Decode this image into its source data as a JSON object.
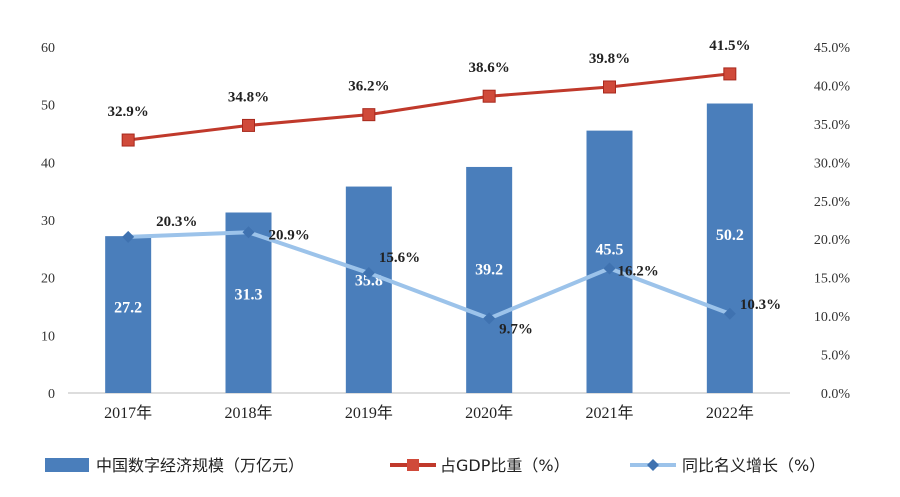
{
  "chart_data": {
    "type": "bar+line",
    "categories": [
      "2017年",
      "2018年",
      "2019年",
      "2020年",
      "2021年",
      "2022年"
    ],
    "series": [
      {
        "name": "中国数字经济规模（万亿元）",
        "type": "bar",
        "axis": "left",
        "values": [
          27.2,
          31.3,
          35.8,
          39.2,
          45.5,
          50.2
        ],
        "labels": [
          "27.2",
          "31.3",
          "35.8",
          "39.2",
          "45.5",
          "50.2"
        ],
        "color": "#4a7ebb"
      },
      {
        "name": "占GDP比重（%）",
        "type": "line",
        "axis": "right",
        "marker": "square",
        "values": [
          32.9,
          34.8,
          36.2,
          38.6,
          39.8,
          41.5
        ],
        "labels": [
          "32.9%",
          "34.8%",
          "36.2%",
          "38.6%",
          "39.8%",
          "41.5%"
        ],
        "color": "#c0392b"
      },
      {
        "name": "同比名义增长（%）",
        "type": "line",
        "axis": "right",
        "marker": "diamond",
        "values": [
          20.3,
          20.9,
          15.6,
          9.7,
          16.2,
          10.3
        ],
        "labels": [
          "20.3%",
          "20.9%",
          "15.6%",
          "9.7%",
          "16.2%",
          "10.3%"
        ],
        "color": "#7aaee0"
      }
    ],
    "ylim_left": [
      0,
      60
    ],
    "yticks_left": [
      "0",
      "10",
      "20",
      "30",
      "40",
      "50",
      "60"
    ],
    "ylim_right": [
      0,
      45
    ],
    "yticks_right": [
      "0.0%",
      "5.0%",
      "10.0%",
      "15.0%",
      "20.0%",
      "25.0%",
      "30.0%",
      "35.0%",
      "40.0%",
      "45.0%"
    ],
    "grid": false,
    "legend": "bottom"
  }
}
